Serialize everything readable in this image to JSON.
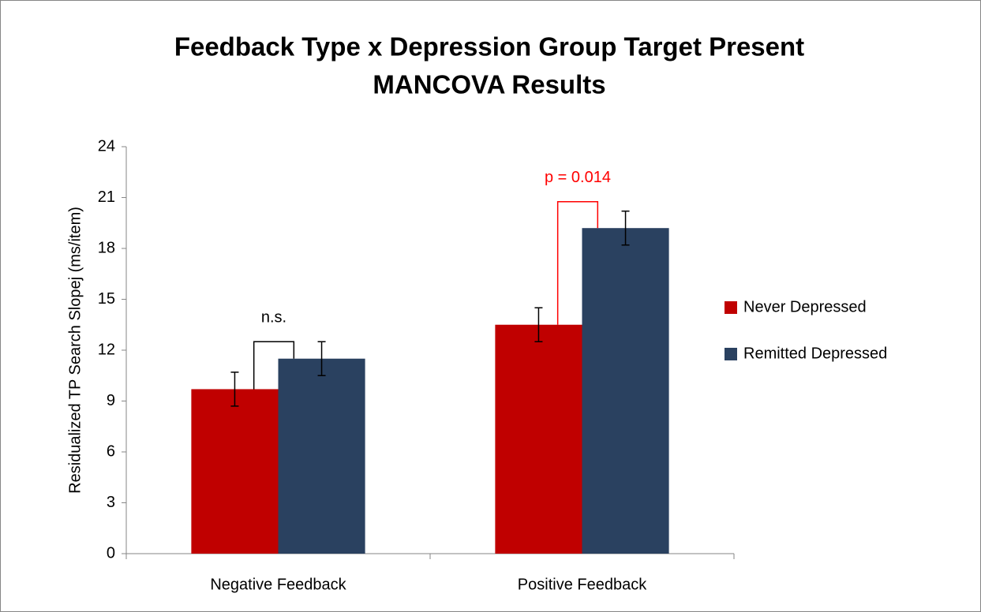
{
  "chart_data": {
    "type": "bar",
    "title": [
      "Feedback Type x Depression Group Target Present",
      "MANCOVA Results"
    ],
    "y_label": "Residualized TP Search Slopej (ms/item)",
    "categories": [
      "Negative Feedback",
      "Positive Feedback"
    ],
    "series": [
      {
        "name": "Never Depressed",
        "color": "#c00000",
        "values": [
          9.7,
          13.5
        ],
        "errors": [
          1.0,
          1.0
        ]
      },
      {
        "name": "Remitted Depressed",
        "color": "#2a4160",
        "values": [
          11.5,
          19.2
        ],
        "errors": [
          1.0,
          1.0
        ]
      }
    ],
    "annotations": [
      {
        "text": "n.s.",
        "category": 0,
        "color": "#000000"
      },
      {
        "text": "p = 0.014",
        "category": 1,
        "color": "#ff0000"
      }
    ],
    "ylim": [
      0,
      24
    ],
    "yticks": [
      0,
      3,
      6,
      9,
      12,
      15,
      18,
      21,
      24
    ],
    "legend": "right"
  }
}
